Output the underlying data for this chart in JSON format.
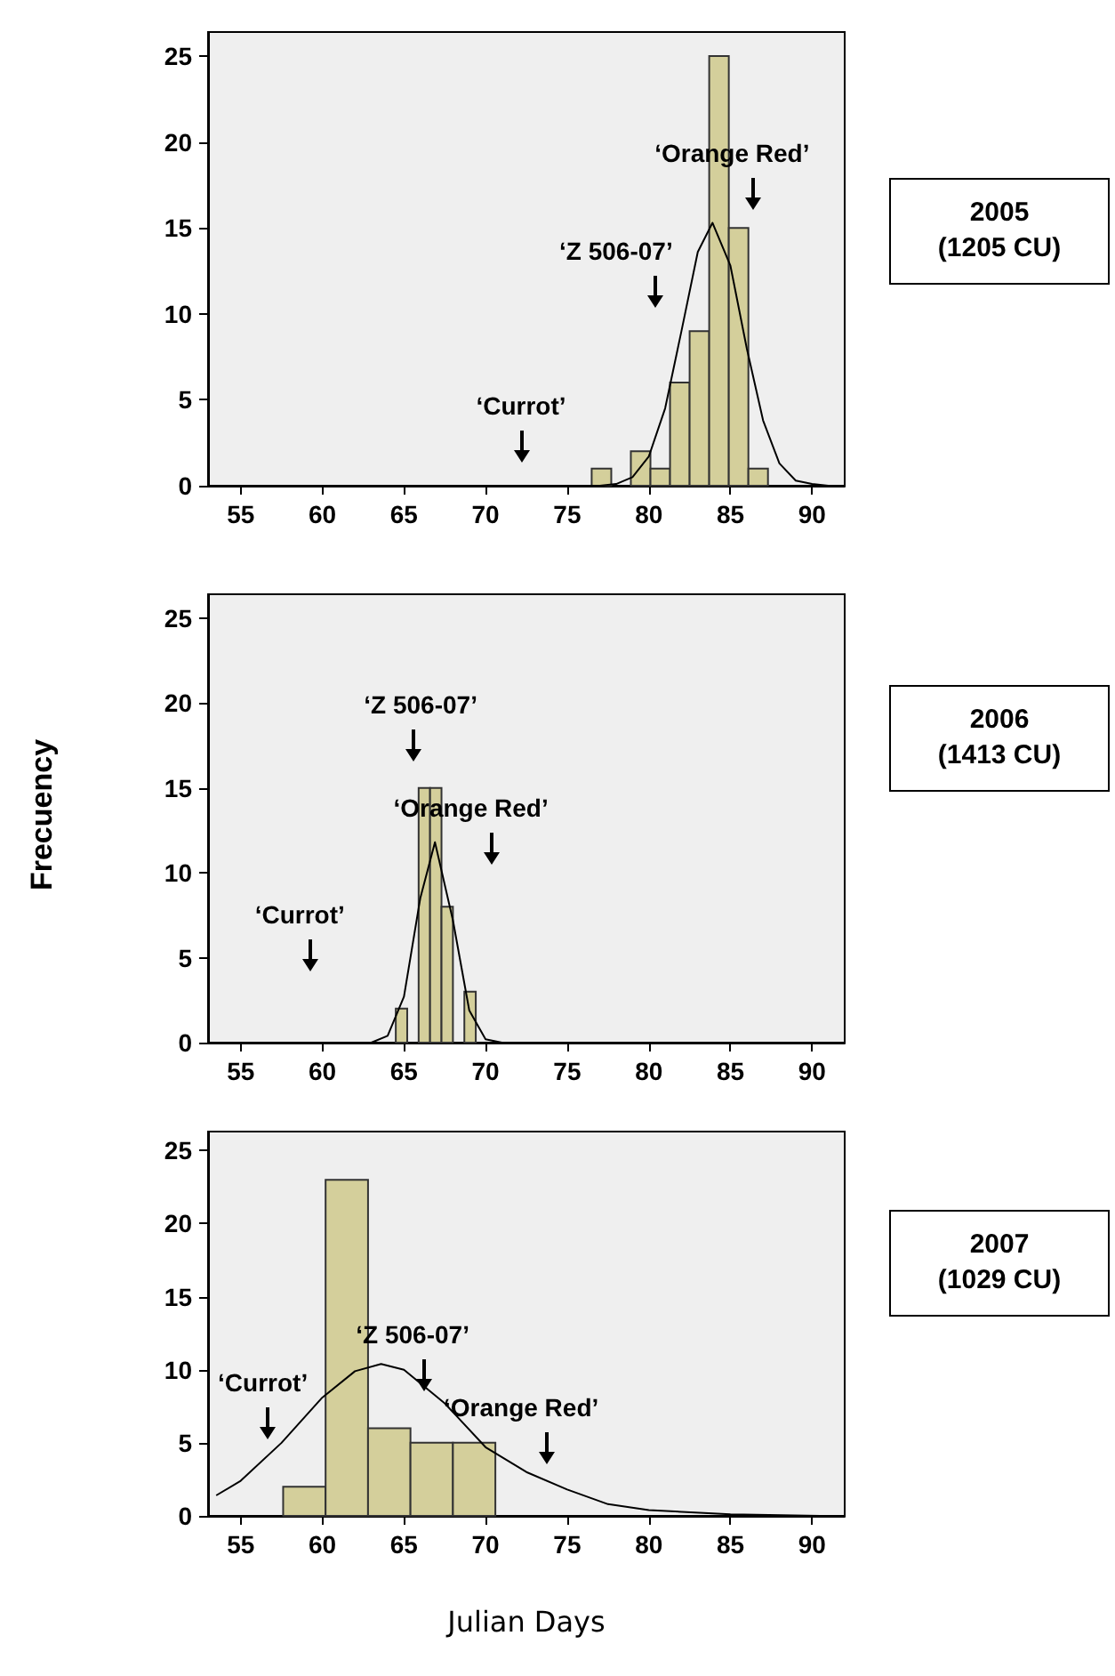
{
  "chart_data": [
    {
      "type": "histogram",
      "xlim": [
        53,
        92
      ],
      "xticks": [
        55,
        60,
        65,
        70,
        75,
        80,
        85,
        90
      ],
      "ylim": [
        0,
        26.4
      ],
      "yticks": [
        0,
        5,
        10,
        15,
        20,
        25
      ],
      "series": [
        {
          "type": "histogram",
          "color": "#d4cf9b",
          "bins": [
            76.5,
            77.7,
            78.9,
            80.1,
            81.3,
            82.5,
            83.7,
            84.9,
            86.1,
            87.3
          ],
          "values": [
            1,
            0,
            2,
            1,
            6,
            9,
            25,
            15,
            1
          ]
        },
        {
          "type": "line",
          "color": "#000000",
          "x": [
            75,
            77,
            78,
            79,
            80,
            81,
            82,
            83,
            83.9,
            85,
            86,
            87,
            88,
            89,
            90,
            91
          ],
          "values": [
            0,
            0,
            0.1,
            0.5,
            1.7,
            4.5,
            9,
            13.6,
            15.3,
            12.8,
            8,
            3.8,
            1.3,
            0.3,
            0.1,
            0
          ]
        }
      ],
      "annotations": [
        "2005",
        "(1205 CU)",
        "‘Currot’",
        "‘Z 506-07’",
        "‘Orange Red’"
      ]
    },
    {
      "type": "histogram",
      "ylabel": "Frecuency",
      "xlim": [
        53,
        92
      ],
      "xticks": [
        55,
        60,
        65,
        70,
        75,
        80,
        85,
        90
      ],
      "ylim": [
        0,
        26.4
      ],
      "yticks": [
        0,
        5,
        10,
        15,
        20,
        25
      ],
      "series": [
        {
          "type": "histogram",
          "color": "#d4cf9b",
          "bins": [
            64.5,
            65.2,
            65.9,
            66.6,
            67.3,
            68.0,
            68.7,
            69.4
          ],
          "values": [
            2,
            0,
            15,
            15,
            8,
            0,
            3
          ]
        },
        {
          "type": "line",
          "color": "#000000",
          "x": [
            63,
            64,
            65,
            66,
            66.9,
            68,
            69,
            70,
            71
          ],
          "values": [
            0,
            0.4,
            2.7,
            8.5,
            11.8,
            7.2,
            1.9,
            0.2,
            0
          ]
        }
      ],
      "annotations": [
        "2006",
        "(1413 CU)",
        "‘Currot’",
        "‘Z 506-07’",
        "‘Orange Red’"
      ]
    },
    {
      "type": "histogram",
      "xlabel": "Julian Days",
      "xlim": [
        53,
        92
      ],
      "xticks": [
        55,
        60,
        65,
        70,
        75,
        80,
        85,
        90
      ],
      "ylim": [
        0,
        26.3
      ],
      "yticks": [
        0,
        5,
        10,
        15,
        20,
        25
      ],
      "series": [
        {
          "type": "histogram",
          "color": "#d4cf9b",
          "bins": [
            57.6,
            60.2,
            62.8,
            65.4,
            68.0,
            70.6
          ],
          "values": [
            2,
            23,
            6,
            5,
            5
          ]
        },
        {
          "type": "line",
          "color": "#000000",
          "x": [
            53.5,
            55,
            57.5,
            60,
            62,
            63.6,
            65,
            67.5,
            70,
            72.5,
            75,
            77.5,
            80,
            85,
            90.5
          ],
          "values": [
            1.4,
            2.4,
            5,
            8.1,
            9.9,
            10.4,
            10,
            7.7,
            4.7,
            3,
            1.8,
            0.8,
            0.4,
            0.1,
            0
          ]
        }
      ],
      "annotations": [
        "2007",
        "(1029 CU)",
        "‘Currot’",
        "‘Z 506-07’",
        "‘Orange Red’"
      ]
    }
  ]
}
